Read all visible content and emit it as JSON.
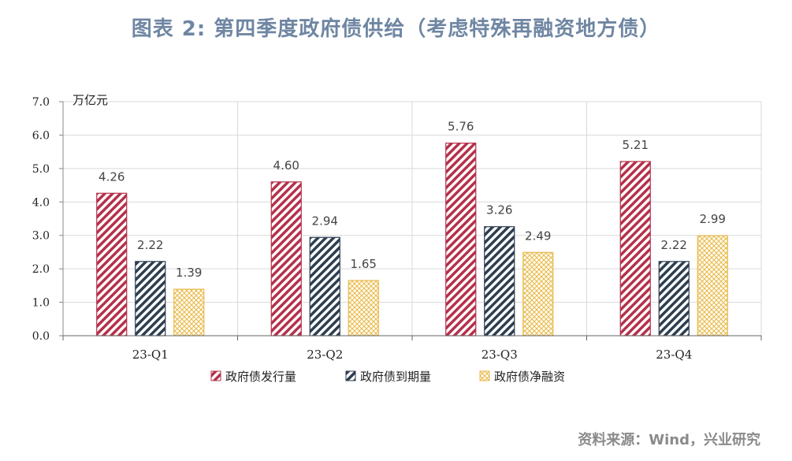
{
  "title": "图表 2:  第四季度政府债供给（考虑特殊再融资地方债）",
  "source": "资料来源：Wind，兴业研究",
  "chart_data": {
    "type": "bar",
    "unit_label": "万亿元",
    "categories": [
      "23-Q1",
      "23-Q2",
      "23-Q3",
      "23-Q4"
    ],
    "ylim": [
      0,
      7
    ],
    "yticks": [
      "0.0",
      "1.0",
      "2.0",
      "3.0",
      "4.0",
      "5.0",
      "6.0",
      "7.0"
    ],
    "grid": true,
    "legend_position": "bottom",
    "series": [
      {
        "name": "政府债发行量",
        "values": [
          4.26,
          4.6,
          5.76,
          5.21
        ],
        "labels": [
          "4.26",
          "4.60",
          "5.76",
          "5.21"
        ],
        "color": "#b5304a",
        "pattern": "diagonal-hatch"
      },
      {
        "name": "政府债到期量",
        "values": [
          2.22,
          2.94,
          3.26,
          2.22
        ],
        "labels": [
          "2.22",
          "2.94",
          "3.26",
          "2.22"
        ],
        "color": "#2d3e50",
        "pattern": "diagonal-hatch"
      },
      {
        "name": "政府债净融资",
        "values": [
          1.39,
          1.65,
          2.49,
          2.99
        ],
        "labels": [
          "1.39",
          "1.65",
          "2.49",
          "2.99"
        ],
        "color": "#e8b84a",
        "pattern": "crosshatch"
      }
    ]
  }
}
